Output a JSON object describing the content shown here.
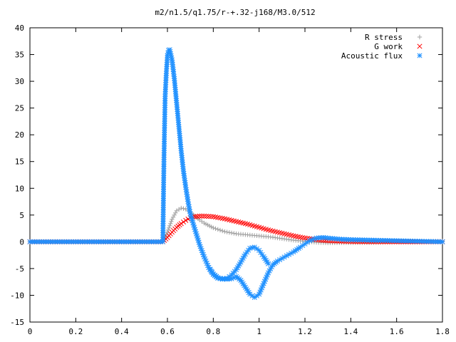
{
  "chart_data": {
    "type": "scatter",
    "title": "m2/n1.5/q1.75/r-+.32-j168/M3.0/512",
    "xlabel": "",
    "ylabel": "",
    "xlim": [
      0,
      1.8
    ],
    "ylim": [
      -15,
      40
    ],
    "x_ticks": [
      0,
      0.2,
      0.4,
      0.6,
      0.8,
      1,
      1.2,
      1.4,
      1.6,
      1.8
    ],
    "y_ticks": [
      -15,
      -10,
      -5,
      0,
      5,
      10,
      15,
      20,
      25,
      30,
      35,
      40
    ],
    "x_tick_labels": [
      "0",
      "0.2",
      "0.4",
      "0.6",
      "0.8",
      "1",
      "1.2",
      "1.4",
      "1.6",
      "1.8"
    ],
    "y_tick_labels": [
      "-15",
      "-10",
      "-5",
      "0",
      "5",
      "10",
      "15",
      "20",
      "25",
      "30",
      "35",
      "40"
    ],
    "grid": false,
    "legend_position": "top-right",
    "series": [
      {
        "name": "R stress",
        "marker": "plus",
        "color": "#a0a0a0",
        "x": [
          0.0,
          0.1,
          0.2,
          0.3,
          0.4,
          0.5,
          0.58,
          0.6,
          0.62,
          0.64,
          0.66,
          0.68,
          0.7,
          0.72,
          0.74,
          0.76,
          0.8,
          0.85,
          0.9,
          0.95,
          1.0,
          1.05,
          1.1,
          1.15,
          1.2,
          1.25,
          1.3,
          1.4,
          1.5,
          1.6,
          1.7,
          1.8
        ],
        "y": [
          0,
          0,
          0,
          0,
          0,
          0,
          0,
          1.8,
          4.2,
          5.8,
          6.3,
          6.1,
          5.5,
          4.8,
          4.1,
          3.5,
          2.6,
          1.9,
          1.5,
          1.3,
          1.1,
          0.9,
          0.6,
          0.3,
          0.1,
          -0.1,
          -0.2,
          -0.15,
          -0.1,
          0,
          0.1,
          0.1
        ]
      },
      {
        "name": "G work",
        "marker": "cross",
        "color": "#ff0000",
        "x": [
          0.0,
          0.1,
          0.2,
          0.3,
          0.4,
          0.5,
          0.58,
          0.6,
          0.62,
          0.64,
          0.66,
          0.68,
          0.7,
          0.72,
          0.74,
          0.76,
          0.8,
          0.85,
          0.9,
          0.95,
          1.0,
          1.05,
          1.1,
          1.15,
          1.2,
          1.25,
          1.3,
          1.4,
          1.5,
          1.6,
          1.7,
          1.8
        ],
        "y": [
          0,
          0,
          0,
          0,
          0,
          0,
          0,
          0.8,
          1.8,
          2.7,
          3.4,
          4.0,
          4.5,
          4.7,
          4.8,
          4.8,
          4.7,
          4.3,
          3.8,
          3.3,
          2.7,
          2.1,
          1.6,
          1.1,
          0.7,
          0.4,
          0.2,
          0.05,
          0,
          0,
          0,
          0
        ]
      },
      {
        "name": "Acoustic flux",
        "marker": "star",
        "color": "#1e90ff",
        "x": [
          0.0,
          0.1,
          0.2,
          0.3,
          0.4,
          0.5,
          0.58,
          0.585,
          0.59,
          0.595,
          0.6,
          0.605,
          0.61,
          0.62,
          0.63,
          0.64,
          0.65,
          0.66,
          0.67,
          0.68,
          0.69,
          0.7,
          0.72,
          0.74,
          0.76,
          0.78,
          0.8,
          0.82,
          0.84,
          0.86,
          0.88,
          0.9,
          0.92,
          0.94,
          0.96,
          0.98,
          1.0,
          1.02,
          1.04,
          1.06,
          1.08,
          1.1,
          1.12,
          1.15,
          1.18,
          1.2,
          1.22,
          1.25,
          1.28,
          1.3,
          1.35,
          1.4,
          1.5,
          1.6,
          1.7,
          1.8
        ],
        "y": [
          0,
          0,
          0,
          0,
          0,
          0,
          0,
          15.8,
          27.2,
          31.5,
          34.8,
          35.8,
          35.9,
          34.0,
          30.5,
          26.0,
          21.5,
          17.0,
          13.2,
          10.2,
          7.5,
          5.2,
          2.3,
          -0.5,
          -2.8,
          -4.8,
          -6.0,
          -6.7,
          -6.9,
          -7.0,
          -6.9,
          -6.5,
          -7.2,
          -8.5,
          -9.8,
          -10.4,
          -9.8,
          -7.8,
          -5.8,
          -4.3,
          -3.6,
          -3.1,
          -2.6,
          -1.9,
          -1.0,
          -0.4,
          0.2,
          0.7,
          0.8,
          0.7,
          0.5,
          0.4,
          0.3,
          0.2,
          0.1,
          0.0
        ]
      },
      {
        "name": "",
        "marker": "star",
        "color": "#1e90ff",
        "x": [
          0.78,
          0.8,
          0.82,
          0.84,
          0.86,
          0.88,
          0.9,
          0.92,
          0.94,
          0.96,
          0.98,
          1.0,
          1.02,
          1.04
        ],
        "y": [
          -4.8,
          -6.1,
          -6.8,
          -7.0,
          -6.8,
          -6.2,
          -5.2,
          -3.8,
          -2.3,
          -1.2,
          -1.0,
          -1.6,
          -2.8,
          -4.1
        ]
      }
    ]
  }
}
